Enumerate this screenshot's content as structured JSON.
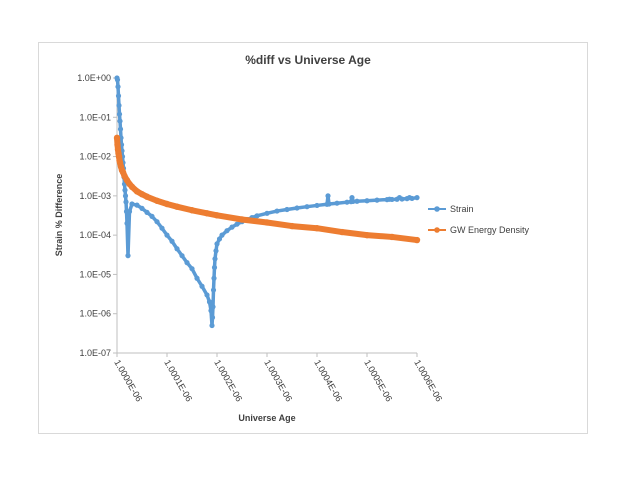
{
  "chart_data": {
    "type": "line",
    "title": "%diff vs Universe Age",
    "xlabel": "Universe Age",
    "ylabel": "Strain % Difference",
    "x_scale": "linear",
    "y_scale": "log",
    "xlim": [
      1e-06,
      1.0006e-06
    ],
    "ylim": [
      1e-07,
      1.0
    ],
    "x_ticks": [
      1e-06,
      1.0001e-06,
      1.0002e-06,
      1.0003e-06,
      1.0004e-06,
      1.0005e-06,
      1.0006e-06
    ],
    "x_tick_labels": [
      "1.0000E-06",
      "1.0001E-06",
      "1.0002E-06",
      "1.0003E-06",
      "1.0004E-06",
      "1.0005E-06",
      "1.0006E-06"
    ],
    "y_ticks": [
      1e-07,
      1e-06,
      1e-05,
      0.0001,
      0.001,
      0.01,
      0.1,
      1.0
    ],
    "y_tick_labels": [
      "1.0E-07",
      "1.0E-06",
      "1.0E-05",
      "1.0E-04",
      "1.0E-03",
      "1.0E-02",
      "1.0E-01",
      "1.0E+00"
    ],
    "grid": false,
    "legend_position": "right",
    "series": [
      {
        "name": "Strain",
        "color": "#5b9bd5",
        "x": [
          1e-06,
          1.000001e-06,
          1.000002e-06,
          1.000003e-06,
          1.000004e-06,
          1.000005e-06,
          1.000006e-06,
          1.000007e-06,
          1.000008e-06,
          1.000009e-06,
          1.00001e-06,
          1.000011e-06,
          1.000012e-06,
          1.000013e-06,
          1.000014e-06,
          1.000015e-06,
          1.000016e-06,
          1.000017e-06,
          1.000018e-06,
          1.000019e-06,
          1.00002e-06,
          1.000022e-06,
          1.000025e-06,
          1.00003e-06,
          1.00004e-06,
          1.00005e-06,
          1.00006e-06,
          1.00007e-06,
          1.00008e-06,
          1.00009e-06,
          1.0001e-06,
          1.00011e-06,
          1.00012e-06,
          1.00013e-06,
          1.00014e-06,
          1.00015e-06,
          1.00016e-06,
          1.00017e-06,
          1.00018e-06,
          1.000185e-06,
          1.000188e-06,
          1.00019e-06,
          1.000191e-06,
          1.000192e-06,
          1.000193e-06,
          1.000194e-06,
          1.000195e-06,
          1.000196e-06,
          1.000198e-06,
          1.0002e-06,
          1.000205e-06,
          1.00021e-06,
          1.00022e-06,
          1.00023e-06,
          1.00024e-06,
          1.00025e-06,
          1.00026e-06,
          1.00027e-06,
          1.00028e-06,
          1.0003e-06,
          1.00032e-06,
          1.00034e-06,
          1.00036e-06,
          1.00038e-06,
          1.0004e-06,
          1.00042e-06,
          1.000422e-06,
          1.000424e-06,
          1.00044e-06,
          1.00046e-06,
          1.000468e-06,
          1.00047e-06,
          1.000472e-06,
          1.00048e-06,
          1.0005e-06,
          1.00052e-06,
          1.00054e-06,
          1.000545e-06,
          1.00055e-06,
          1.00056e-06,
          1.000565e-06,
          1.00057e-06,
          1.00058e-06,
          1.000585e-06,
          1.00059e-06,
          1.0006e-06
        ],
        "y": [
          1.0,
          0.9,
          0.6,
          0.35,
          0.2,
          0.12,
          0.08,
          0.05,
          0.03,
          0.02,
          0.014,
          0.01,
          0.007,
          0.005,
          0.003,
          0.002,
          0.0014,
          0.001,
          0.0007,
          0.0004,
          0.0002,
          3e-05,
          0.0004,
          0.00062,
          0.00058,
          0.00048,
          0.00038,
          0.0003,
          0.00022,
          0.00015,
          0.0001,
          7e-05,
          4.5e-05,
          3e-05,
          2e-05,
          1.4e-05,
          8e-06,
          5e-06,
          3e-06,
          2e-06,
          1.2e-06,
          5e-07,
          8e-07,
          1.5e-06,
          4e-06,
          8e-06,
          1.5e-05,
          2.5e-05,
          4e-05,
          6e-05,
          8e-05,
          0.0001,
          0.00013,
          0.00016,
          0.00019,
          0.00022,
          0.00025,
          0.00028,
          0.00031,
          0.00036,
          0.00041,
          0.00045,
          0.00049,
          0.00053,
          0.00057,
          0.00061,
          0.001,
          0.00062,
          0.00065,
          0.00069,
          0.00071,
          0.0009,
          0.00072,
          0.00073,
          0.00075,
          0.00078,
          0.0008,
          0.00082,
          0.00081,
          0.00082,
          0.0009,
          0.00083,
          0.00085,
          0.0009,
          0.00086,
          0.0009
        ]
      },
      {
        "name": "GW Energy Density",
        "color": "#ed7d31",
        "x": [
          1e-06,
          1.000001e-06,
          1.000002e-06,
          1.000003e-06,
          1.000004e-06,
          1.000005e-06,
          1.000006e-06,
          1.000008e-06,
          1.00001e-06,
          1.000012e-06,
          1.000015e-06,
          1.00002e-06,
          1.000025e-06,
          1.00003e-06,
          1.00004e-06,
          1.00005e-06,
          1.00006e-06,
          1.00008e-06,
          1.0001e-06,
          1.00012e-06,
          1.00015e-06,
          1.00018e-06,
          1.0002e-06,
          1.00025e-06,
          1.0003e-06,
          1.00035e-06,
          1.0004e-06,
          1.00045e-06,
          1.0005e-06,
          1.00055e-06,
          1.0006e-06
        ],
        "y": [
          0.03,
          0.02,
          0.015,
          0.012,
          0.01,
          0.008,
          0.007,
          0.0055,
          0.0045,
          0.004,
          0.0032,
          0.0025,
          0.002,
          0.0017,
          0.0013,
          0.0011,
          0.00095,
          0.00075,
          0.00062,
          0.00053,
          0.00043,
          0.00036,
          0.00032,
          0.00025,
          0.00021,
          0.00017,
          0.00015,
          0.00012,
          0.0001,
          9e-05,
          7.5e-05
        ]
      }
    ]
  }
}
